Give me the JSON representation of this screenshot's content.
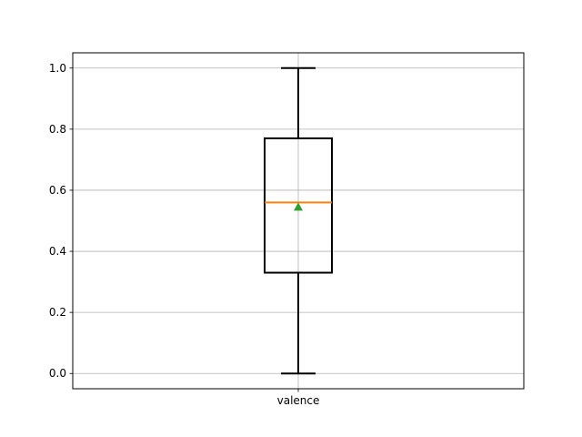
{
  "chart_data": {
    "type": "box",
    "categories": [
      "valence"
    ],
    "boxes": [
      {
        "name": "valence",
        "whisker_low": 0.0,
        "q1": 0.33,
        "median": 0.56,
        "q3": 0.77,
        "whisker_high": 1.0,
        "mean": 0.545
      }
    ],
    "ylim": [
      -0.05,
      1.05
    ],
    "yticks": [
      "0.0",
      "0.2",
      "0.4",
      "0.6",
      "0.8",
      "1.0"
    ],
    "grid": true,
    "colors": {
      "box": "#000000",
      "median": "#ff7f0e",
      "mean": "#2ca02c",
      "grid": "#b0b0b0"
    }
  }
}
